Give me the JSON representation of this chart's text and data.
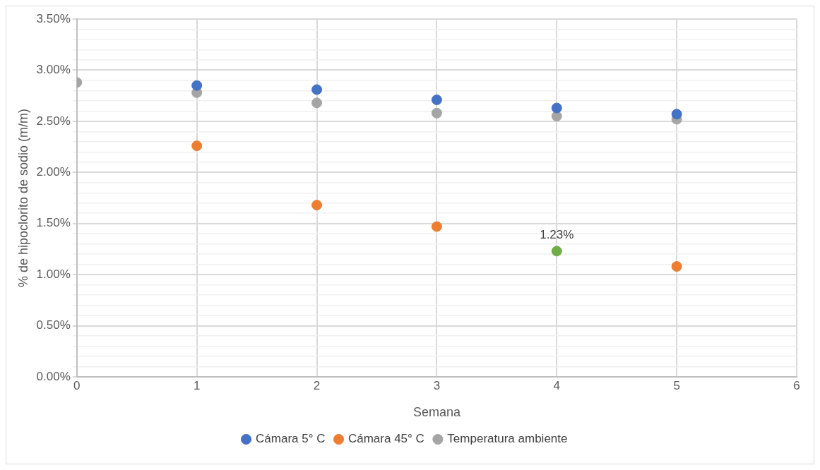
{
  "chart_data": {
    "type": "scatter",
    "xlabel": "Semana",
    "ylabel": "% de hipoclorito de sodio (m/m)",
    "x": [
      0,
      1,
      2,
      3,
      4,
      5
    ],
    "series": [
      {
        "name": "Cámara 5° C",
        "color": "#4472c4",
        "values": [
          null,
          2.85,
          2.81,
          2.71,
          2.63,
          2.57
        ]
      },
      {
        "name": "Cámara 45° C",
        "color": "#ed7d31",
        "colors": [
          "#ed7d31",
          "#ed7d31",
          "#ed7d31",
          "#ed7d31",
          "#70ad47",
          "#ed7d31"
        ],
        "values": [
          null,
          2.26,
          1.68,
          1.47,
          1.23,
          1.08
        ],
        "value_labels": [
          null,
          null,
          null,
          null,
          "1.23%",
          null
        ]
      },
      {
        "name": "Temperatura ambiente",
        "color": "#a5a5a5",
        "values": [
          2.88,
          2.78,
          2.68,
          2.58,
          2.55,
          2.52
        ]
      }
    ],
    "xlim": [
      0,
      6
    ],
    "xticks": [
      0,
      1,
      2,
      3,
      4,
      5,
      6
    ],
    "ylim": [
      0,
      3.5
    ],
    "yticks": [
      {
        "value": 0,
        "label": "0.00%"
      },
      {
        "value": 0.1,
        "label": null
      },
      {
        "value": 0.2,
        "label": null
      },
      {
        "value": 0.3,
        "label": null
      },
      {
        "value": 0.4,
        "label": null
      },
      {
        "value": 0.5,
        "label": "0.50%"
      },
      {
        "value": 0.6,
        "label": null
      },
      {
        "value": 0.7,
        "label": null
      },
      {
        "value": 0.8,
        "label": null
      },
      {
        "value": 0.9,
        "label": null
      },
      {
        "value": 1,
        "label": "1.00%"
      },
      {
        "value": 1.1,
        "label": null
      },
      {
        "value": 1.2,
        "label": null
      },
      {
        "value": 1.3,
        "label": null
      },
      {
        "value": 1.4,
        "label": null
      },
      {
        "value": 1.5,
        "label": "1.50%"
      },
      {
        "value": 1.6,
        "label": null
      },
      {
        "value": 1.7,
        "label": null
      },
      {
        "value": 1.8,
        "label": null
      },
      {
        "value": 1.9,
        "label": null
      },
      {
        "value": 2,
        "label": "2.00%"
      },
      {
        "value": 2.1,
        "label": null
      },
      {
        "value": 2.2,
        "label": null
      },
      {
        "value": 2.3,
        "label": null
      },
      {
        "value": 2.4,
        "label": null
      },
      {
        "value": 2.5,
        "label": "2.50%"
      },
      {
        "value": 2.6,
        "label": null
      },
      {
        "value": 2.7,
        "label": null
      },
      {
        "value": 2.8,
        "label": null
      },
      {
        "value": 2.9,
        "label": null
      },
      {
        "value": 3,
        "label": "3.00%"
      },
      {
        "value": 3.1,
        "label": null
      },
      {
        "value": 3.2,
        "label": null
      },
      {
        "value": 3.3,
        "label": null
      },
      {
        "value": 3.4,
        "label": null
      },
      {
        "value": 3.5,
        "label": "3.50%"
      }
    ],
    "grid": true,
    "legend": "bottom",
    "marker": "circle"
  }
}
